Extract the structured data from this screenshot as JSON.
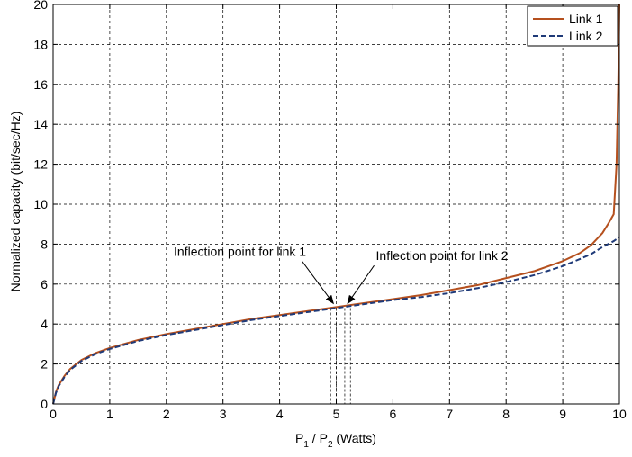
{
  "chart_data": {
    "type": "line",
    "title": "",
    "xlabel": {
      "p1_main": "P",
      "p1_sub": "1",
      "separator": " / P",
      "p2_sub": "2",
      "suffix": " (Watts)"
    },
    "ylabel": "Normalized capacity (bit/sec/Hz)",
    "xlim": [
      0,
      10
    ],
    "ylim": [
      0,
      20
    ],
    "xticks": [
      "0",
      "1",
      "2",
      "3",
      "4",
      "5",
      "6",
      "7",
      "8",
      "9",
      "10"
    ],
    "yticks": [
      "0",
      "2",
      "4",
      "6",
      "8",
      "10",
      "12",
      "14",
      "16",
      "18",
      "20"
    ],
    "grid": true,
    "legend_position": "top-right",
    "series": [
      {
        "name": "Link 1",
        "color": "#b5501e",
        "style": "solid",
        "x": [
          0,
          0.05,
          0.1,
          0.2,
          0.3,
          0.5,
          0.75,
          1,
          1.5,
          2,
          2.5,
          3,
          3.5,
          4,
          4.5,
          5,
          5.5,
          6,
          6.5,
          7,
          7.5,
          8,
          8.5,
          9,
          9.3,
          9.5,
          9.7,
          9.8,
          9.9,
          9.95,
          9.98,
          10
        ],
        "y": [
          0,
          0.6,
          0.95,
          1.4,
          1.75,
          2.2,
          2.55,
          2.8,
          3.2,
          3.5,
          3.75,
          4.0,
          4.25,
          4.45,
          4.65,
          4.85,
          5.05,
          5.25,
          5.45,
          5.7,
          5.95,
          6.3,
          6.65,
          7.15,
          7.55,
          7.95,
          8.55,
          9.0,
          9.5,
          12.0,
          16.0,
          20.0
        ]
      },
      {
        "name": "Link 2",
        "color": "#1f3a78",
        "style": "dashed",
        "x": [
          0,
          0.05,
          0.1,
          0.2,
          0.3,
          0.5,
          0.75,
          1,
          1.5,
          2,
          2.5,
          3,
          3.5,
          4,
          4.5,
          5,
          5.5,
          6,
          6.5,
          7,
          7.5,
          8,
          8.5,
          9,
          9.3,
          9.5,
          9.7,
          9.8,
          9.9,
          10
        ],
        "y": [
          0,
          0.55,
          0.9,
          1.35,
          1.7,
          2.15,
          2.5,
          2.75,
          3.15,
          3.45,
          3.7,
          3.95,
          4.2,
          4.4,
          4.6,
          4.8,
          5.0,
          5.2,
          5.35,
          5.55,
          5.8,
          6.1,
          6.45,
          6.9,
          7.25,
          7.5,
          7.85,
          8.0,
          8.15,
          8.35
        ]
      }
    ],
    "annotations": [
      {
        "text": "Inflection point for link 1",
        "x_point": 4.95,
        "y_point": 4.8,
        "x_text": 3.3,
        "y_text": 7.4
      },
      {
        "text": "Inflection point for link 2",
        "x_point": 5.2,
        "y_point": 4.8,
        "x_text": 5.7,
        "y_text": 7.2
      }
    ],
    "vertical_markers": [
      4.9,
      5.0,
      5.15,
      5.25
    ]
  }
}
